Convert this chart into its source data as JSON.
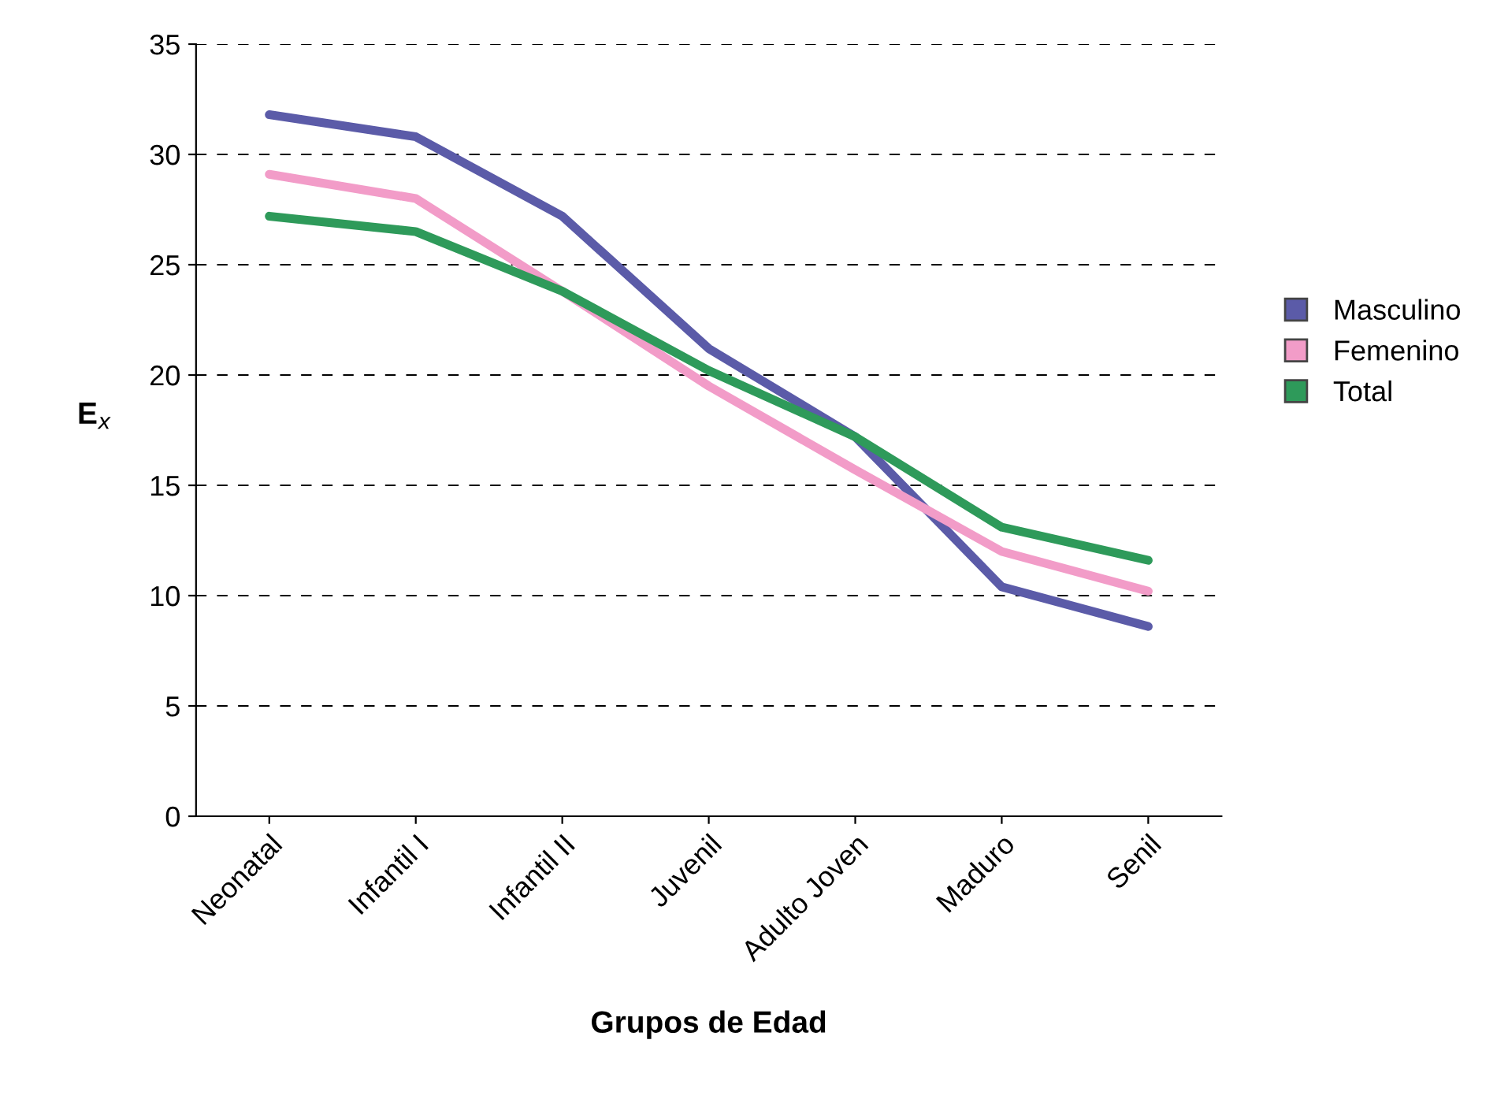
{
  "chart_data": {
    "type": "line",
    "xlabel": "Grupos de Edad",
    "ylabel": "E$_{x}$",
    "categories": [
      "Neonatal",
      "Infantil I",
      "Infantil II",
      "Juvenil",
      "Adulto Joven",
      "Maduro",
      "Senil"
    ],
    "series": [
      {
        "name": "Masculino",
        "color": "#5b5ba8",
        "values": [
          31.8,
          30.8,
          27.2,
          21.2,
          17.2,
          10.4,
          8.6
        ]
      },
      {
        "name": "Femenino",
        "color": "#f29cc8",
        "values": [
          29.1,
          28.0,
          23.8,
          19.5,
          15.7,
          12.0,
          10.2
        ]
      },
      {
        "name": "Total",
        "color": "#2e9a5a",
        "values": [
          27.2,
          26.5,
          23.8,
          20.2,
          17.2,
          13.1,
          11.6
        ]
      }
    ],
    "ylim": [
      0,
      35
    ],
    "yticks": [
      0,
      5,
      10,
      15,
      20,
      25,
      30,
      35
    ],
    "grid": "y",
    "legend": "right",
    "marker": "none",
    "line_style": "solid"
  }
}
